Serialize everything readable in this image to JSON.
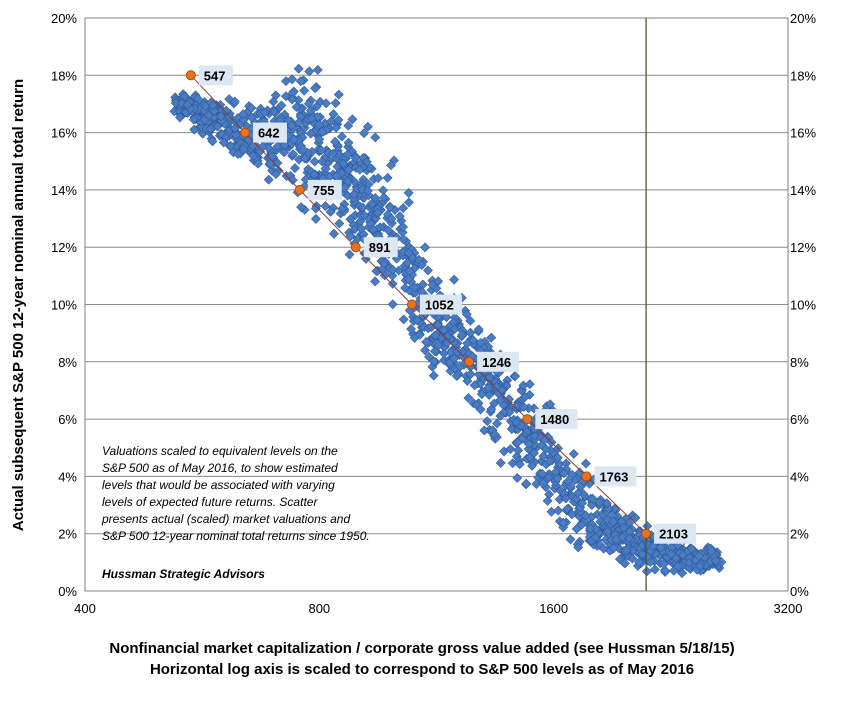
{
  "chart_data": {
    "type": "scatter",
    "x_scale": "log",
    "xlim": [
      400,
      3200
    ],
    "ylim": [
      0,
      20
    ],
    "x_ticks": [
      "400",
      "800",
      "1600",
      "3200"
    ],
    "y_ticks_left": [
      "0%",
      "2%",
      "4%",
      "6%",
      "8%",
      "10%",
      "12%",
      "14%",
      "16%",
      "18%",
      "20%"
    ],
    "y_ticks_right": [
      "0%",
      "2%",
      "4%",
      "6%",
      "8%",
      "10%",
      "12%",
      "14%",
      "16%",
      "18%",
      "20%"
    ],
    "ylabel": "Actual subsequent S&P 500 12-year nominal annual total return",
    "xlabel_line1": "Nonfinancial  market capitalization  / corporate gross value added (see Hussman 5/18/15)",
    "xlabel_line2": "Horizontal log axis is scaled to correspond to S&P 500 levels as of May 2016",
    "grid": "horizontal",
    "vertical_marker_x": 2103,
    "colors": {
      "scatter": "#4a7cc4",
      "scatter_edge": "#2e5a9a",
      "marker": "#e8731e",
      "line": "#8b3a3a",
      "grid": "#8c8c8c"
    },
    "scatter_bands": [
      {
        "x": 525,
        "y_min": 16.6,
        "y_max": 17.4
      },
      {
        "x": 560,
        "y_min": 15.8,
        "y_max": 17.6
      },
      {
        "x": 600,
        "y_min": 15.0,
        "y_max": 17.8
      },
      {
        "x": 640,
        "y_min": 14.4,
        "y_max": 17.6
      },
      {
        "x": 690,
        "y_min": 13.6,
        "y_max": 17.4
      },
      {
        "x": 740,
        "y_min": 12.8,
        "y_max": 19.0
      },
      {
        "x": 790,
        "y_min": 12.4,
        "y_max": 18.8
      },
      {
        "x": 840,
        "y_min": 11.8,
        "y_max": 17.8
      },
      {
        "x": 890,
        "y_min": 11.2,
        "y_max": 17.0
      },
      {
        "x": 950,
        "y_min": 9.0,
        "y_max": 16.6
      },
      {
        "x": 1010,
        "y_min": 8.6,
        "y_max": 16.0
      },
      {
        "x": 1080,
        "y_min": 7.4,
        "y_max": 12.4
      },
      {
        "x": 1150,
        "y_min": 6.8,
        "y_max": 11.4
      },
      {
        "x": 1230,
        "y_min": 6.2,
        "y_max": 11.0
      },
      {
        "x": 1310,
        "y_min": 4.6,
        "y_max": 10.0
      },
      {
        "x": 1400,
        "y_min": 3.6,
        "y_max": 9.0
      },
      {
        "x": 1490,
        "y_min": 2.6,
        "y_max": 8.0
      },
      {
        "x": 1590,
        "y_min": 1.6,
        "y_max": 7.4
      },
      {
        "x": 1700,
        "y_min": 1.2,
        "y_max": 5.6
      },
      {
        "x": 1820,
        "y_min": 0.8,
        "y_max": 4.4
      },
      {
        "x": 1950,
        "y_min": 0.6,
        "y_max": 3.2
      },
      {
        "x": 2090,
        "y_min": 0.4,
        "y_max": 2.8
      },
      {
        "x": 2250,
        "y_min": 0.4,
        "y_max": 2.4
      },
      {
        "x": 2430,
        "y_min": 0.4,
        "y_max": 1.8
      },
      {
        "x": 2600,
        "y_min": 0.6,
        "y_max": 1.6
      }
    ],
    "valuation_levels": [
      {
        "x": 547,
        "y": 18,
        "label": "547"
      },
      {
        "x": 642,
        "y": 16,
        "label": "642"
      },
      {
        "x": 755,
        "y": 14,
        "label": "755"
      },
      {
        "x": 891,
        "y": 12,
        "label": "891"
      },
      {
        "x": 1052,
        "y": 10,
        "label": "1052"
      },
      {
        "x": 1246,
        "y": 8,
        "label": "1246"
      },
      {
        "x": 1480,
        "y": 6,
        "label": "1480"
      },
      {
        "x": 1763,
        "y": 4,
        "label": "1763"
      },
      {
        "x": 2103,
        "y": 2,
        "label": "2103"
      }
    ],
    "annotation_lines": [
      "Valuations scaled to equivalent levels on the",
      "S&P 500 as of May 2016,  to show estimated",
      "levels that would be associated with varying",
      "levels of expected future returns.  Scatter",
      "presents actual (scaled) market valuations and",
      "S&P 500 12-year nominal total returns since 1950."
    ],
    "source": "Hussman Strategic Advisors"
  }
}
